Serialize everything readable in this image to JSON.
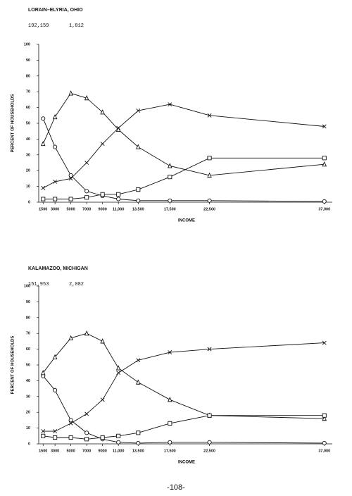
{
  "chart_data": [
    {
      "type": "line",
      "title": "LORAIN–ELYRIA, OHIO",
      "notes": [
        "192,159",
        "1,812"
      ],
      "x_label": "INCOME",
      "y_label": "PERCENT OF HOUSEHOLDS",
      "x": [
        1500,
        3000,
        5000,
        7000,
        9000,
        11000,
        13500,
        17500,
        22500,
        37000
      ],
      "xlim": [
        500,
        38000
      ],
      "xticks": [
        1500,
        3000,
        5000,
        7000,
        9000,
        {
          "value": 11000,
          "label": "11,000"
        },
        {
          "value": 13500,
          "label": "13,500"
        },
        {
          "value": 17500,
          "label": "17,500"
        },
        {
          "value": 22500,
          "label": "22,500"
        },
        {
          "value": 37000,
          "label": "37,000"
        }
      ],
      "ylim": [
        0,
        100
      ],
      "yticks": [
        0,
        10,
        20,
        30,
        40,
        50,
        60,
        70,
        80,
        90,
        100
      ],
      "series": [
        {
          "marker": "circle",
          "color": "#111111",
          "values": [
            53,
            35,
            17,
            7,
            4,
            2,
            1,
            1,
            1,
            0.5
          ]
        },
        {
          "marker": "triangle",
          "color": "#111111",
          "values": [
            37,
            54,
            69,
            66,
            57,
            46,
            35,
            23,
            17,
            24
          ]
        },
        {
          "marker": "cross",
          "color": "#111111",
          "values": [
            9,
            13,
            15,
            25,
            37,
            47,
            58,
            62,
            55,
            48
          ]
        },
        {
          "marker": "square",
          "color": "#111111",
          "values": [
            2,
            2,
            2,
            3,
            5,
            5,
            8,
            16,
            28,
            28
          ]
        }
      ]
    },
    {
      "type": "line",
      "title": "KALAMAZOO, MICHIGAN",
      "notes": [
        "151,953",
        "2,082"
      ],
      "x_label": "INCOME",
      "y_label": "PERCENT OF HOUSEHOLDS",
      "x": [
        1500,
        3000,
        5000,
        7000,
        9000,
        11000,
        13500,
        17500,
        22500,
        37000
      ],
      "xlim": [
        500,
        38000
      ],
      "xticks": [
        1500,
        3000,
        5000,
        7000,
        9000,
        {
          "value": 11000,
          "label": "11,000"
        },
        {
          "value": 13500,
          "label": "13,500"
        },
        {
          "value": 17500,
          "label": "17,500"
        },
        {
          "value": 22500,
          "label": "22,500"
        },
        {
          "value": 37000,
          "label": "37,000"
        }
      ],
      "ylim": [
        0,
        100
      ],
      "yticks": [
        0,
        10,
        20,
        30,
        40,
        50,
        60,
        70,
        80,
        90,
        100
      ],
      "series": [
        {
          "marker": "circle",
          "color": "#111111",
          "values": [
            43,
            34,
            15,
            7,
            3,
            1,
            0.5,
            1,
            1,
            0.5
          ]
        },
        {
          "marker": "triangle",
          "color": "#111111",
          "values": [
            45,
            55,
            67,
            70,
            65,
            48,
            39,
            28,
            18,
            16
          ]
        },
        {
          "marker": "cross",
          "color": "#111111",
          "values": [
            8,
            8,
            13,
            19,
            28,
            45,
            53,
            58,
            60,
            64
          ]
        },
        {
          "marker": "square",
          "color": "#111111",
          "values": [
            5,
            4,
            4,
            3,
            4,
            5,
            7,
            13,
            18,
            18
          ]
        }
      ]
    }
  ],
  "page_number": "-108-"
}
